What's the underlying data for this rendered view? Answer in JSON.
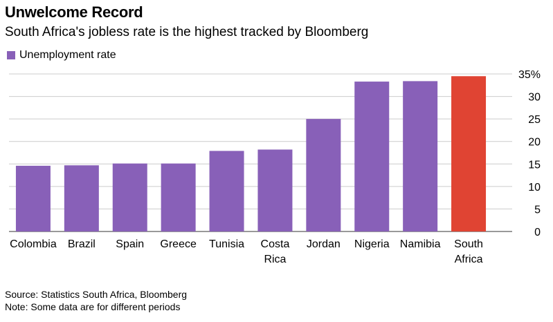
{
  "title": "Unwelcome Record",
  "subtitle": "South Africa's jobless rate is the highest tracked by Bloomberg",
  "legend": {
    "label": "Unemployment rate",
    "color": "#8860b8"
  },
  "source": "Source: Statistics South Africa, Bloomberg",
  "note": "Note: Some data are for different periods",
  "chart_data": {
    "type": "bar",
    "categories": [
      [
        "Colombia"
      ],
      [
        "Brazil"
      ],
      [
        "Spain"
      ],
      [
        "Greece"
      ],
      [
        "Tunisia"
      ],
      [
        "Costa",
        "Rica"
      ],
      [
        "Jordan"
      ],
      [
        "Nigeria"
      ],
      [
        "Namibia"
      ],
      [
        "South",
        "Africa"
      ]
    ],
    "values": [
      14.6,
      14.7,
      15.1,
      15.1,
      17.9,
      18.2,
      25.0,
      33.3,
      33.4,
      34.5
    ],
    "colors": [
      "#8860b8",
      "#8860b8",
      "#8860b8",
      "#8860b8",
      "#8860b8",
      "#8860b8",
      "#8860b8",
      "#8860b8",
      "#8860b8",
      "#e04433"
    ],
    "ylim": [
      0,
      35
    ],
    "yticks": [
      0,
      5,
      10,
      15,
      20,
      25,
      30,
      35
    ],
    "ytick_labels": [
      "0",
      "5",
      "10",
      "15",
      "20",
      "25",
      "30",
      "35%"
    ],
    "y_axis_side": "right",
    "grid": true,
    "legend_position": "top-left",
    "xlabel": "",
    "ylabel": ""
  }
}
